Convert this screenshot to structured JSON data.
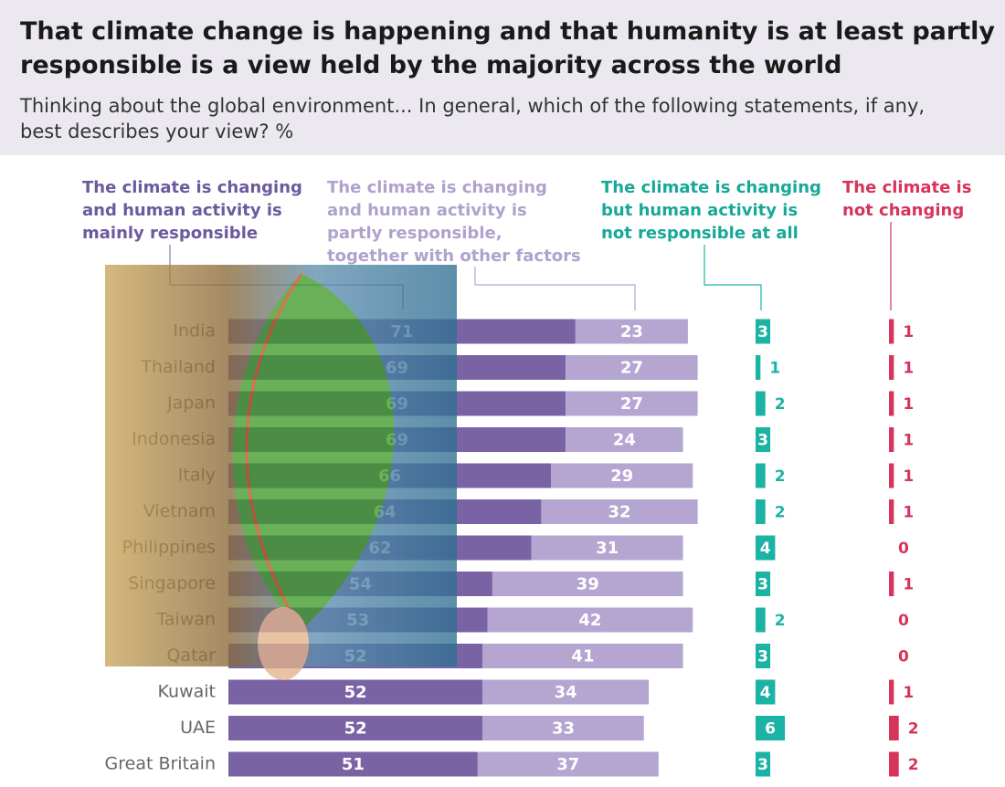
{
  "chart_data": {
    "type": "bar",
    "stacked": true,
    "title": "That climate change is happening and that humanity is at least partly responsible is a view held by the majority across the world",
    "subtitle": "Thinking about the global environment... In general, which of the following statements, if any, best describes your view? %",
    "categories": [
      "India",
      "Thailand",
      "Japan",
      "Indonesia",
      "Italy",
      "Vietnam",
      "Philippines",
      "Singapore",
      "Taiwan",
      "Qatar",
      "Kuwait",
      "UAE",
      "Great Britain"
    ],
    "series": [
      {
        "name": "The climate is changing and human activity is mainly responsible",
        "color": "#7a63a4",
        "values": [
          71,
          69,
          69,
          69,
          66,
          64,
          62,
          54,
          53,
          52,
          52,
          52,
          51
        ]
      },
      {
        "name": "The climate is changing and human activity is partly responsible, together with other factors",
        "color": "#b4a5d1",
        "values": [
          23,
          27,
          27,
          24,
          29,
          32,
          31,
          39,
          42,
          41,
          34,
          33,
          37
        ]
      },
      {
        "name": "The climate is changing but human activity is not responsible at all",
        "color": "#1bb3a3",
        "values": [
          3,
          1,
          2,
          3,
          2,
          2,
          4,
          3,
          2,
          3,
          4,
          6,
          3
        ]
      },
      {
        "name": "The climate is not changing",
        "color": "#d6345a",
        "values": [
          1,
          1,
          1,
          1,
          1,
          1,
          0,
          1,
          0,
          0,
          1,
          2,
          2
        ]
      }
    ]
  }
}
